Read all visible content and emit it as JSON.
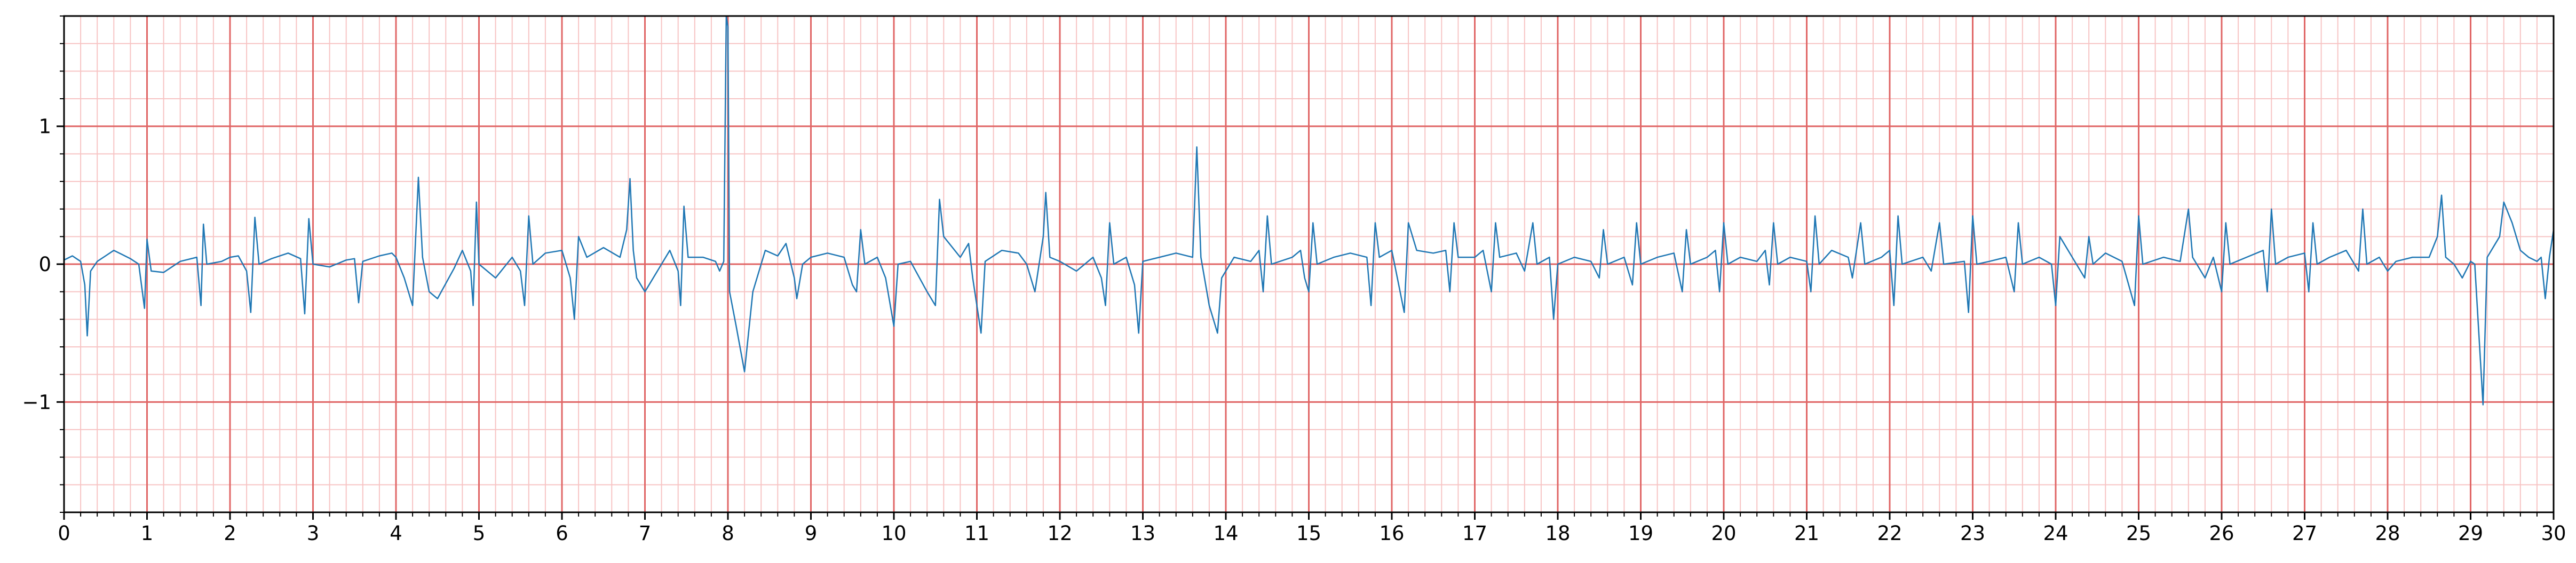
{
  "chart_data": {
    "type": "line",
    "title": "",
    "xlabel": "",
    "ylabel": "",
    "xlim": [
      0,
      30
    ],
    "ylim": [
      -1.8,
      1.8
    ],
    "x_ticks": [
      0,
      1,
      2,
      3,
      4,
      5,
      6,
      7,
      8,
      9,
      10,
      11,
      12,
      13,
      14,
      15,
      16,
      17,
      18,
      19,
      20,
      21,
      22,
      23,
      24,
      25,
      26,
      27,
      28,
      29,
      30
    ],
    "x_tick_labels": [
      "0",
      "1",
      "2",
      "3",
      "4",
      "5",
      "6",
      "7",
      "8",
      "9",
      "10",
      "11",
      "12",
      "13",
      "14",
      "15",
      "16",
      "17",
      "18",
      "19",
      "20",
      "21",
      "22",
      "23",
      "24",
      "25",
      "26",
      "27",
      "28",
      "29",
      "30"
    ],
    "y_ticks": [
      -1,
      0,
      1
    ],
    "y_tick_labels": [
      "−1",
      "0",
      "1"
    ],
    "grid": true,
    "grid_major": {
      "x_step": 1,
      "y_step": 1,
      "color": "#e06666"
    },
    "grid_minor": {
      "x_step": 0.2,
      "y_step": 0.2,
      "color": "#f7c4c4"
    },
    "series": [
      {
        "color": "#1f77b4",
        "points": [
          [
            0,
            0.03
          ],
          [
            0.1,
            0.06
          ],
          [
            0.15,
            0.04
          ],
          [
            0.2,
            0.02
          ],
          [
            0.25,
            -0.15
          ],
          [
            0.28,
            -0.52
          ],
          [
            0.32,
            -0.05
          ],
          [
            0.4,
            0.02
          ],
          [
            0.5,
            0.06
          ],
          [
            0.6,
            0.1
          ],
          [
            0.7,
            0.07
          ],
          [
            0.8,
            0.04
          ],
          [
            0.9,
            0.0
          ],
          [
            0.97,
            -0.32
          ],
          [
            1.0,
            0.18
          ],
          [
            1.05,
            -0.05
          ],
          [
            1.2,
            -0.06
          ],
          [
            1.4,
            0.02
          ],
          [
            1.6,
            0.05
          ],
          [
            1.65,
            -0.3
          ],
          [
            1.68,
            0.29
          ],
          [
            1.72,
            0.0
          ],
          [
            1.9,
            0.02
          ],
          [
            2.0,
            0.05
          ],
          [
            2.1,
            0.06
          ],
          [
            2.2,
            -0.05
          ],
          [
            2.25,
            -0.35
          ],
          [
            2.3,
            0.34
          ],
          [
            2.35,
            0.0
          ],
          [
            2.5,
            0.04
          ],
          [
            2.7,
            0.08
          ],
          [
            2.85,
            0.04
          ],
          [
            2.9,
            -0.36
          ],
          [
            2.95,
            0.33
          ],
          [
            3.0,
            0.0
          ],
          [
            3.2,
            -0.02
          ],
          [
            3.4,
            0.03
          ],
          [
            3.5,
            0.04
          ],
          [
            3.55,
            -0.28
          ],
          [
            3.6,
            0.02
          ],
          [
            3.8,
            0.06
          ],
          [
            3.95,
            0.08
          ],
          [
            4.0,
            0.05
          ],
          [
            4.1,
            -0.1
          ],
          [
            4.2,
            -0.3
          ],
          [
            4.27,
            0.63
          ],
          [
            4.32,
            0.05
          ],
          [
            4.4,
            -0.2
          ],
          [
            4.5,
            -0.25
          ],
          [
            4.7,
            -0.03
          ],
          [
            4.8,
            0.1
          ],
          [
            4.9,
            -0.05
          ],
          [
            4.93,
            -0.3
          ],
          [
            4.97,
            0.45
          ],
          [
            5.0,
            0.0
          ],
          [
            5.2,
            -0.1
          ],
          [
            5.4,
            0.05
          ],
          [
            5.5,
            -0.05
          ],
          [
            5.55,
            -0.3
          ],
          [
            5.6,
            0.35
          ],
          [
            5.65,
            0.0
          ],
          [
            5.8,
            0.08
          ],
          [
            6.0,
            0.1
          ],
          [
            6.1,
            -0.1
          ],
          [
            6.15,
            -0.4
          ],
          [
            6.2,
            0.2
          ],
          [
            6.3,
            0.05
          ],
          [
            6.5,
            0.12
          ],
          [
            6.7,
            0.05
          ],
          [
            6.78,
            0.25
          ],
          [
            6.82,
            0.62
          ],
          [
            6.86,
            0.1
          ],
          [
            6.9,
            -0.1
          ],
          [
            7.0,
            -0.2
          ],
          [
            7.2,
            0.0
          ],
          [
            7.3,
            0.1
          ],
          [
            7.4,
            -0.05
          ],
          [
            7.43,
            -0.3
          ],
          [
            7.47,
            0.42
          ],
          [
            7.52,
            0.05
          ],
          [
            7.7,
            0.05
          ],
          [
            7.85,
            0.02
          ],
          [
            7.9,
            -0.05
          ],
          [
            7.95,
            0.02
          ],
          [
            7.98,
            1.8
          ],
          [
            8.0,
            1.72
          ],
          [
            8.02,
            -0.2
          ],
          [
            8.1,
            -0.45
          ],
          [
            8.2,
            -0.78
          ],
          [
            8.3,
            -0.2
          ],
          [
            8.45,
            0.1
          ],
          [
            8.6,
            0.06
          ],
          [
            8.7,
            0.15
          ],
          [
            8.8,
            -0.1
          ],
          [
            8.83,
            -0.25
          ],
          [
            8.9,
            0.0
          ],
          [
            9.0,
            0.05
          ],
          [
            9.2,
            0.08
          ],
          [
            9.4,
            0.05
          ],
          [
            9.5,
            -0.15
          ],
          [
            9.55,
            -0.2
          ],
          [
            9.6,
            0.25
          ],
          [
            9.65,
            0.0
          ],
          [
            9.8,
            0.05
          ],
          [
            9.9,
            -0.1
          ],
          [
            10.0,
            -0.45
          ],
          [
            10.05,
            0.0
          ],
          [
            10.2,
            0.02
          ],
          [
            10.4,
            -0.2
          ],
          [
            10.5,
            -0.3
          ],
          [
            10.55,
            0.47
          ],
          [
            10.6,
            0.2
          ],
          [
            10.8,
            0.05
          ],
          [
            10.9,
            0.15
          ],
          [
            10.95,
            -0.1
          ],
          [
            11.05,
            -0.5
          ],
          [
            11.1,
            0.02
          ],
          [
            11.3,
            0.1
          ],
          [
            11.5,
            0.08
          ],
          [
            11.6,
            0.0
          ],
          [
            11.7,
            -0.2
          ],
          [
            11.8,
            0.2
          ],
          [
            11.83,
            0.52
          ],
          [
            11.88,
            0.05
          ],
          [
            12.0,
            0.02
          ],
          [
            12.2,
            -0.05
          ],
          [
            12.4,
            0.05
          ],
          [
            12.5,
            -0.1
          ],
          [
            12.55,
            -0.3
          ],
          [
            12.6,
            0.3
          ],
          [
            12.65,
            0.0
          ],
          [
            12.8,
            0.05
          ],
          [
            12.9,
            -0.15
          ],
          [
            12.95,
            -0.5
          ],
          [
            13.0,
            0.02
          ],
          [
            13.2,
            0.05
          ],
          [
            13.4,
            0.08
          ],
          [
            13.6,
            0.05
          ],
          [
            13.65,
            0.85
          ],
          [
            13.7,
            0.05
          ],
          [
            13.8,
            -0.3
          ],
          [
            13.9,
            -0.5
          ],
          [
            13.95,
            -0.1
          ],
          [
            14.1,
            0.05
          ],
          [
            14.3,
            0.02
          ],
          [
            14.4,
            0.1
          ],
          [
            14.45,
            -0.2
          ],
          [
            14.5,
            0.35
          ],
          [
            14.55,
            0.0
          ],
          [
            14.8,
            0.05
          ],
          [
            14.9,
            0.1
          ],
          [
            14.95,
            -0.1
          ],
          [
            15.0,
            -0.2
          ],
          [
            15.05,
            0.3
          ],
          [
            15.1,
            0.0
          ],
          [
            15.3,
            0.05
          ],
          [
            15.5,
            0.08
          ],
          [
            15.7,
            0.05
          ],
          [
            15.75,
            -0.3
          ],
          [
            15.8,
            0.3
          ],
          [
            15.85,
            0.05
          ],
          [
            16.0,
            0.1
          ],
          [
            16.1,
            -0.2
          ],
          [
            16.15,
            -0.35
          ],
          [
            16.2,
            0.3
          ],
          [
            16.3,
            0.1
          ],
          [
            16.5,
            0.08
          ],
          [
            16.65,
            0.1
          ],
          [
            16.7,
            -0.2
          ],
          [
            16.75,
            0.3
          ],
          [
            16.8,
            0.05
          ],
          [
            17.0,
            0.05
          ],
          [
            17.1,
            0.1
          ],
          [
            17.2,
            -0.2
          ],
          [
            17.25,
            0.3
          ],
          [
            17.3,
            0.05
          ],
          [
            17.5,
            0.08
          ],
          [
            17.6,
            -0.05
          ],
          [
            17.7,
            0.3
          ],
          [
            17.75,
            0.0
          ],
          [
            17.9,
            0.05
          ],
          [
            17.95,
            -0.4
          ],
          [
            18.0,
            0.0
          ],
          [
            18.2,
            0.05
          ],
          [
            18.4,
            0.02
          ],
          [
            18.5,
            -0.1
          ],
          [
            18.55,
            0.25
          ],
          [
            18.6,
            0.0
          ],
          [
            18.8,
            0.05
          ],
          [
            18.9,
            -0.15
          ],
          [
            18.95,
            0.3
          ],
          [
            19.0,
            0.0
          ],
          [
            19.2,
            0.05
          ],
          [
            19.4,
            0.08
          ],
          [
            19.5,
            -0.2
          ],
          [
            19.55,
            0.25
          ],
          [
            19.6,
            0.0
          ],
          [
            19.8,
            0.05
          ],
          [
            19.9,
            0.1
          ],
          [
            19.95,
            -0.2
          ],
          [
            20.0,
            0.3
          ],
          [
            20.05,
            0.0
          ],
          [
            20.2,
            0.05
          ],
          [
            20.4,
            0.02
          ],
          [
            20.5,
            0.1
          ],
          [
            20.55,
            -0.15
          ],
          [
            20.6,
            0.3
          ],
          [
            20.65,
            0.0
          ],
          [
            20.8,
            0.05
          ],
          [
            21.0,
            0.02
          ],
          [
            21.05,
            -0.2
          ],
          [
            21.1,
            0.35
          ],
          [
            21.15,
            0.0
          ],
          [
            21.3,
            0.1
          ],
          [
            21.5,
            0.05
          ],
          [
            21.55,
            -0.1
          ],
          [
            21.65,
            0.3
          ],
          [
            21.7,
            0.0
          ],
          [
            21.9,
            0.05
          ],
          [
            22.0,
            0.1
          ],
          [
            22.05,
            -0.3
          ],
          [
            22.1,
            0.35
          ],
          [
            22.15,
            0.0
          ],
          [
            22.4,
            0.05
          ],
          [
            22.5,
            -0.05
          ],
          [
            22.6,
            0.3
          ],
          [
            22.65,
            0.0
          ],
          [
            22.9,
            0.02
          ],
          [
            22.95,
            -0.35
          ],
          [
            23.0,
            0.35
          ],
          [
            23.05,
            0.0
          ],
          [
            23.2,
            0.02
          ],
          [
            23.4,
            0.05
          ],
          [
            23.5,
            -0.2
          ],
          [
            23.55,
            0.3
          ],
          [
            23.6,
            0.0
          ],
          [
            23.8,
            0.05
          ],
          [
            23.95,
            0.0
          ],
          [
            24.0,
            -0.3
          ],
          [
            24.05,
            0.2
          ],
          [
            24.2,
            0.05
          ],
          [
            24.35,
            -0.1
          ],
          [
            24.4,
            0.2
          ],
          [
            24.45,
            0.0
          ],
          [
            24.6,
            0.08
          ],
          [
            24.8,
            0.02
          ],
          [
            24.95,
            -0.3
          ],
          [
            25.0,
            0.35
          ],
          [
            25.05,
            0.0
          ],
          [
            25.3,
            0.05
          ],
          [
            25.5,
            0.02
          ],
          [
            25.6,
            0.4
          ],
          [
            25.65,
            0.05
          ],
          [
            25.8,
            -0.1
          ],
          [
            25.9,
            0.05
          ],
          [
            26.0,
            -0.2
          ],
          [
            26.05,
            0.3
          ],
          [
            26.1,
            0.0
          ],
          [
            26.3,
            0.05
          ],
          [
            26.5,
            0.1
          ],
          [
            26.55,
            -0.2
          ],
          [
            26.6,
            0.4
          ],
          [
            26.65,
            0.0
          ],
          [
            26.8,
            0.05
          ],
          [
            27.0,
            0.08
          ],
          [
            27.05,
            -0.2
          ],
          [
            27.1,
            0.3
          ],
          [
            27.15,
            0.0
          ],
          [
            27.3,
            0.05
          ],
          [
            27.5,
            0.1
          ],
          [
            27.65,
            -0.05
          ],
          [
            27.7,
            0.4
          ],
          [
            27.75,
            0.0
          ],
          [
            27.9,
            0.05
          ],
          [
            28.0,
            -0.05
          ],
          [
            28.1,
            0.02
          ],
          [
            28.3,
            0.05
          ],
          [
            28.5,
            0.05
          ],
          [
            28.6,
            0.2
          ],
          [
            28.65,
            0.5
          ],
          [
            28.7,
            0.05
          ],
          [
            28.8,
            0.0
          ],
          [
            28.9,
            -0.1
          ],
          [
            29.0,
            0.02
          ],
          [
            29.05,
            0.0
          ],
          [
            29.15,
            -1.02
          ],
          [
            29.2,
            0.05
          ],
          [
            29.3,
            0.15
          ],
          [
            29.35,
            0.2
          ],
          [
            29.4,
            0.45
          ],
          [
            29.5,
            0.3
          ],
          [
            29.6,
            0.1
          ],
          [
            29.7,
            0.05
          ],
          [
            29.8,
            0.02
          ],
          [
            29.85,
            0.05
          ],
          [
            29.9,
            -0.25
          ],
          [
            29.95,
            0.05
          ],
          [
            30.0,
            0.25
          ]
        ]
      }
    ]
  }
}
